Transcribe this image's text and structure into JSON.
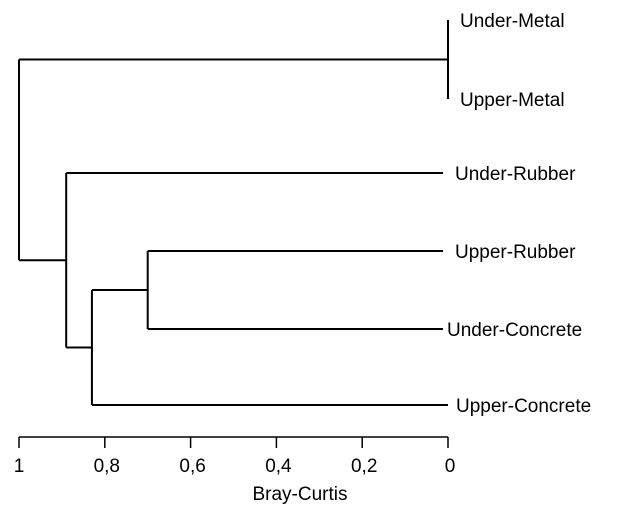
{
  "dendrogram": {
    "axis_title": "Bray-Curtis",
    "axis_ticks": [
      {
        "value": 1,
        "label": "1"
      },
      {
        "value": 0.8,
        "label": "0,8"
      },
      {
        "value": 0.6,
        "label": "0,6"
      },
      {
        "value": 0.4,
        "label": "0,4"
      },
      {
        "value": 0.2,
        "label": "0,2"
      },
      {
        "value": 0,
        "label": "0"
      }
    ],
    "axis_range": [
      1,
      0
    ],
    "leaves": [
      {
        "id": "um",
        "label": "Under-Metal"
      },
      {
        "id": "pm",
        "label": "Upper-Metal"
      },
      {
        "id": "ur",
        "label": "Under-Rubber"
      },
      {
        "id": "pr",
        "label": "Upper-Rubber"
      },
      {
        "id": "uc",
        "label": "Under-Concrete"
      },
      {
        "id": "pc",
        "label": "Upper-Concrete"
      }
    ],
    "merges": [
      {
        "id": "m1",
        "children": [
          "um",
          "pm"
        ],
        "height": 0.0
      },
      {
        "id": "m2",
        "children": [
          "pr",
          "uc"
        ],
        "height": 0.7
      },
      {
        "id": "m3",
        "children": [
          "m2",
          "pc"
        ],
        "height": 0.83
      },
      {
        "id": "m4",
        "children": [
          "ur",
          "m3"
        ],
        "height": 0.89
      },
      {
        "id": "m5",
        "children": [
          "m1",
          "m4"
        ],
        "height": 1.0
      }
    ],
    "line_color": "#000000"
  }
}
